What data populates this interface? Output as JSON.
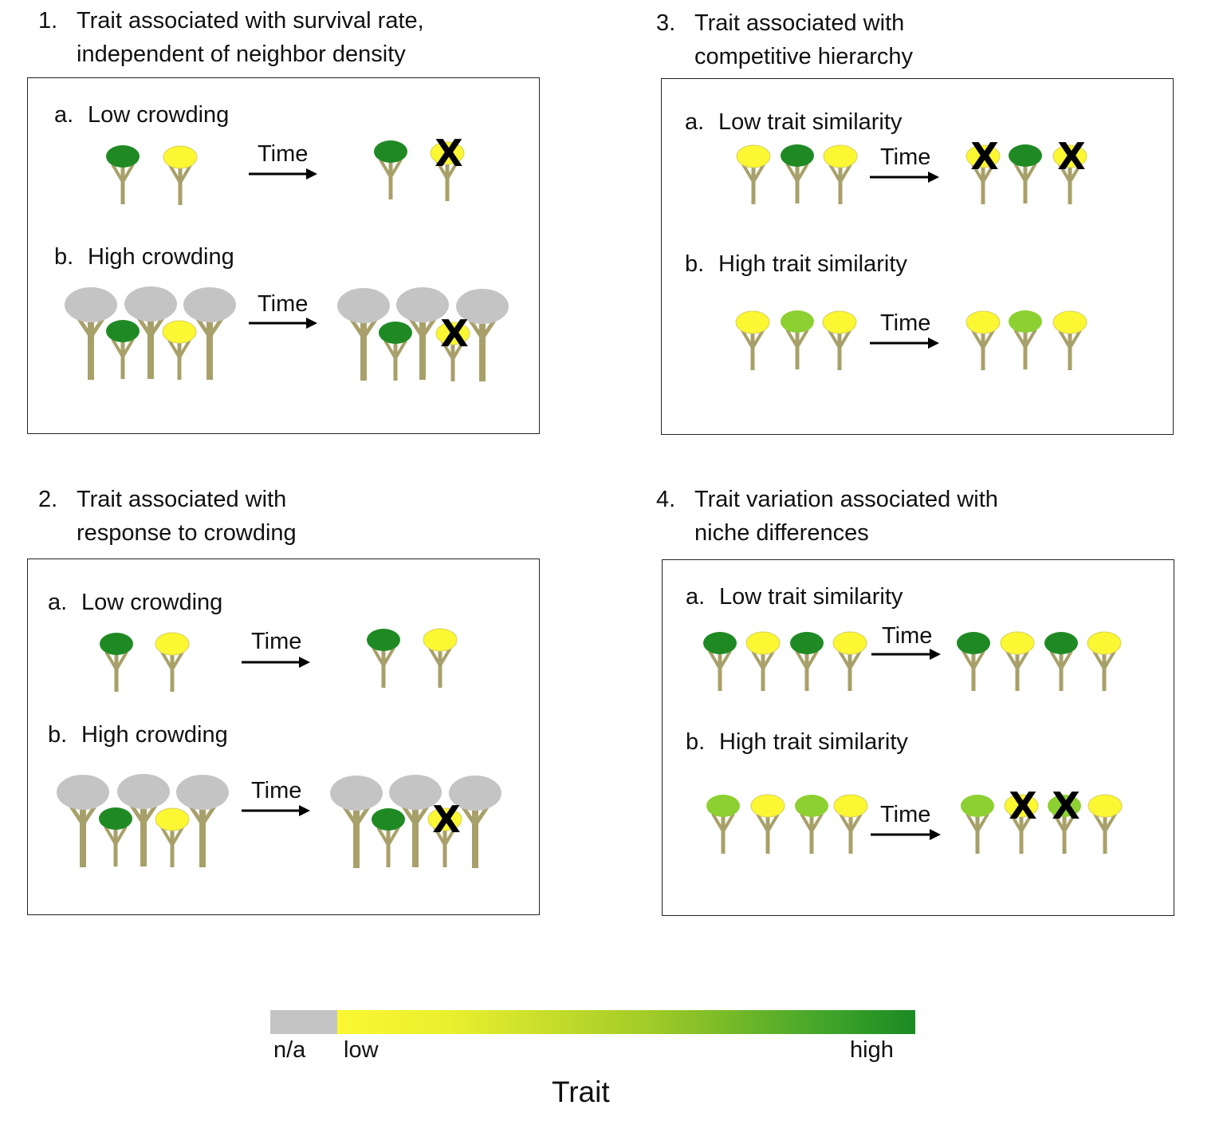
{
  "panels": [
    {
      "number": "1.",
      "title_lines": [
        "Trait associated with survival rate,",
        "independent of neighbor density"
      ],
      "rows": [
        {
          "letter": "a.",
          "label": "Low crowding",
          "time_label": "Time"
        },
        {
          "letter": "b.",
          "label": "High crowding",
          "time_label": "Time"
        }
      ]
    },
    {
      "number": "2.",
      "title_lines": [
        "Trait associated with",
        "response to crowding"
      ],
      "rows": [
        {
          "letter": "a.",
          "label": "Low crowding",
          "time_label": "Time"
        },
        {
          "letter": "b.",
          "label": "High crowding",
          "time_label": "Time"
        }
      ]
    },
    {
      "number": "3.",
      "title_lines": [
        "Trait associated with",
        "competitive hierarchy"
      ],
      "rows": [
        {
          "letter": "a.",
          "label": "Low trait similarity",
          "time_label": "Time"
        },
        {
          "letter": "b.",
          "label": "High trait similarity",
          "time_label": "Time"
        }
      ]
    },
    {
      "number": "4.",
      "title_lines": [
        "Trait variation associated with",
        "niche differences"
      ],
      "rows": [
        {
          "letter": "a.",
          "label": "Low trait similarity",
          "time_label": "Time"
        },
        {
          "letter": "b.",
          "label": "High trait similarity",
          "time_label": "Time"
        }
      ]
    }
  ],
  "dead_marker": "X",
  "legend": {
    "na_label": "n/a",
    "low_label": "low",
    "high_label": "high",
    "title": "Trait"
  },
  "colors": {
    "dark_green": "#1f8a24",
    "light_green": "#8cd031",
    "yellow": "#fbf732",
    "gray": "#c4c4c4",
    "trunk": "#a8a06a"
  }
}
